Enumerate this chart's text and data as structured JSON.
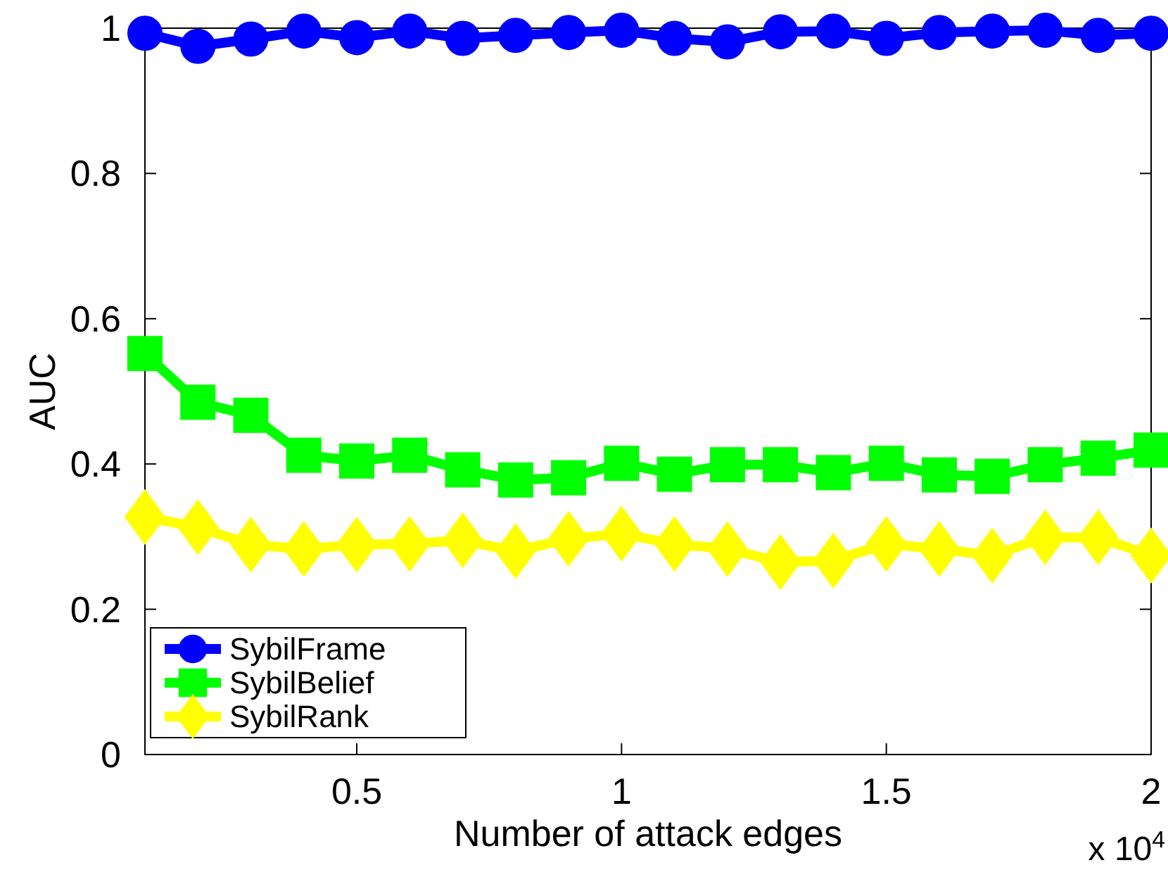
{
  "chart_data": {
    "type": "line",
    "xlabel": "Number of attack edges",
    "ylabel": "AUC",
    "x": [
      0.1,
      0.2,
      0.3,
      0.4,
      0.5,
      0.6,
      0.7,
      0.8,
      0.9,
      1.0,
      1.1,
      1.2,
      1.3,
      1.4,
      1.5,
      1.6,
      1.7,
      1.8,
      1.9,
      2.0
    ],
    "series": [
      {
        "name": "SybilFrame",
        "color": "#0000ff",
        "marker": "circle",
        "values": [
          0.993,
          0.975,
          0.985,
          0.996,
          0.987,
          0.996,
          0.986,
          0.99,
          0.994,
          0.997,
          0.986,
          0.981,
          0.995,
          0.996,
          0.986,
          0.994,
          0.996,
          0.997,
          0.99,
          0.993
        ]
      },
      {
        "name": "SybilBelief",
        "color": "#00ff00",
        "marker": "square",
        "values": [
          0.552,
          0.485,
          0.467,
          0.412,
          0.404,
          0.412,
          0.392,
          0.378,
          0.381,
          0.401,
          0.386,
          0.399,
          0.399,
          0.388,
          0.401,
          0.385,
          0.383,
          0.399,
          0.408,
          0.419
        ]
      },
      {
        "name": "SybilRank",
        "color": "#ffff00",
        "marker": "diamond",
        "values": [
          0.327,
          0.313,
          0.289,
          0.283,
          0.289,
          0.29,
          0.295,
          0.28,
          0.297,
          0.304,
          0.29,
          0.283,
          0.265,
          0.267,
          0.29,
          0.283,
          0.274,
          0.299,
          0.299,
          0.274
        ]
      }
    ],
    "xlim": [
      0.1,
      2
    ],
    "xticks": [
      0.5,
      1,
      1.5,
      2
    ],
    "ylim": [
      0,
      1
    ],
    "yticks": [
      0,
      0.2,
      0.4,
      0.6,
      0.8,
      1
    ],
    "annotations": [
      "x 10$^{4}$"
    ],
    "legend": "bottom left"
  }
}
